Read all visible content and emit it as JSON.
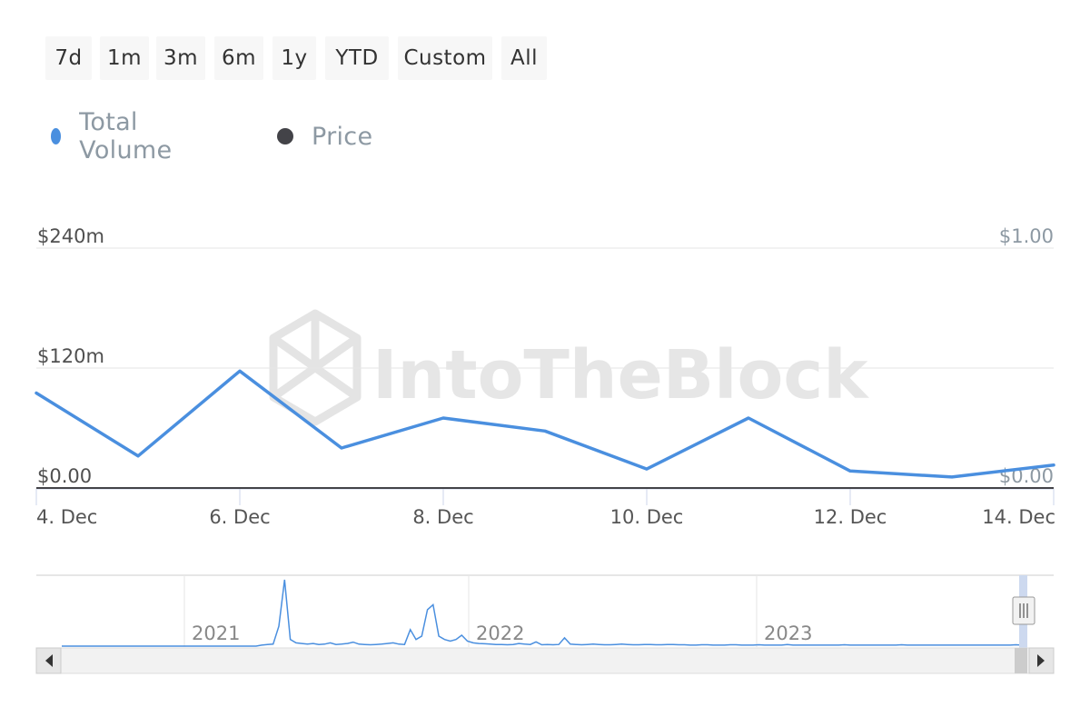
{
  "range_selector": {
    "buttons": [
      "7d",
      "1m",
      "3m",
      "6m",
      "1y",
      "YTD",
      "Custom",
      "All"
    ]
  },
  "legend": {
    "items": [
      {
        "label": "Total Volume",
        "color": "#4a8fdf"
      },
      {
        "label": "Price",
        "color": "#434348"
      }
    ]
  },
  "watermark": "IntoTheBlock",
  "colors": {
    "volume_line": "#4a8fdf",
    "price_line": "#434348",
    "gridline": "#e6e6e6",
    "navigator_bg": "#f2f2f2"
  },
  "chart_data": {
    "type": "line",
    "x": [
      "4. Dec",
      "5. Dec",
      "6. Dec",
      "7. Dec",
      "8. Dec",
      "9. Dec",
      "10. Dec",
      "11. Dec",
      "12. Dec",
      "13. Dec",
      "14. Dec"
    ],
    "x_tick_labels": [
      "4. Dec",
      "6. Dec",
      "8. Dec",
      "10. Dec",
      "12. Dec",
      "14. Dec"
    ],
    "series": [
      {
        "name": "Total Volume",
        "axis": "left",
        "values": [
          95,
          32,
          117,
          40,
          70,
          57,
          19,
          70,
          17,
          11,
          23
        ]
      },
      {
        "name": "Price",
        "axis": "right",
        "values": [
          0.0,
          0.0,
          0.0,
          0.0,
          0.0,
          0.0,
          0.0,
          0.0,
          0.0,
          0.0,
          0.0
        ]
      }
    ],
    "y_left": {
      "min": 0,
      "max": 240,
      "unit": "millions USD",
      "tick_values": [
        0,
        120,
        240
      ],
      "tick_labels": [
        "$0.00",
        "$120m",
        "$240m"
      ]
    },
    "y_right": {
      "min": 0,
      "max": 1,
      "tick_values": [
        0,
        1
      ],
      "tick_labels": [
        "$0.00",
        "$1.00"
      ]
    },
    "grid": true,
    "legend_position": "top-left"
  },
  "navigator": {
    "year_labels": [
      "2021",
      "2022",
      "2023"
    ],
    "series_values": [
      0,
      0,
      0,
      0,
      0,
      0,
      0,
      0,
      0,
      0,
      0,
      0,
      0,
      0,
      0,
      0,
      0,
      0,
      0,
      0,
      0,
      0,
      0,
      0,
      0,
      0,
      0,
      0,
      0,
      0,
      0,
      0,
      0,
      0,
      0,
      0.3,
      0.5,
      0.6,
      6,
      20,
      2,
      1,
      0.8,
      0.6,
      0.8,
      0.5,
      0.6,
      1.0,
      0.5,
      0.6,
      0.8,
      1.2,
      0.6,
      0.5,
      0.4,
      0.5,
      0.6,
      0.8,
      1.0,
      0.6,
      0.5,
      5,
      2,
      3,
      11,
      12.5,
      3,
      2,
      1.5,
      2,
      3.3,
      1.5,
      1.0,
      0.8,
      0.7,
      0.6,
      0.5,
      0.5,
      0.4,
      0.5,
      0.8,
      0.6,
      0.5,
      1.3,
      0.4,
      0.5,
      0.4,
      0.5,
      2.5,
      0.6,
      0.5,
      0.4,
      0.5,
      0.6,
      0.5,
      0.4,
      0.4,
      0.5,
      0.6,
      0.5,
      0.4,
      0.4,
      0.5,
      0.5,
      0.4,
      0.4,
      0.5,
      0.5,
      0.4,
      0.4,
      0.3,
      0.3,
      0.4,
      0.4,
      0.3,
      0.3,
      0.3,
      0.4,
      0.4,
      0.3,
      0.3,
      0.3,
      0.4,
      0.3,
      0.3,
      0.3,
      0.3,
      0.5,
      0.3,
      0.3,
      0.3,
      0.3,
      0.3,
      0.3,
      0.3,
      0.3,
      0.3,
      0.4,
      0.3,
      0.3,
      0.3,
      0.3,
      0.3,
      0.3,
      0.3,
      0.3,
      0.3,
      0.4,
      0.3,
      0.3,
      0.3,
      0.3,
      0.3,
      0.3,
      0.3,
      0.3,
      0.3,
      0.3,
      0.3,
      0.3,
      0.3,
      0.3,
      0.3,
      0.3,
      0.3,
      0.3,
      0.3,
      0.4,
      0.3,
      0.3
    ]
  }
}
